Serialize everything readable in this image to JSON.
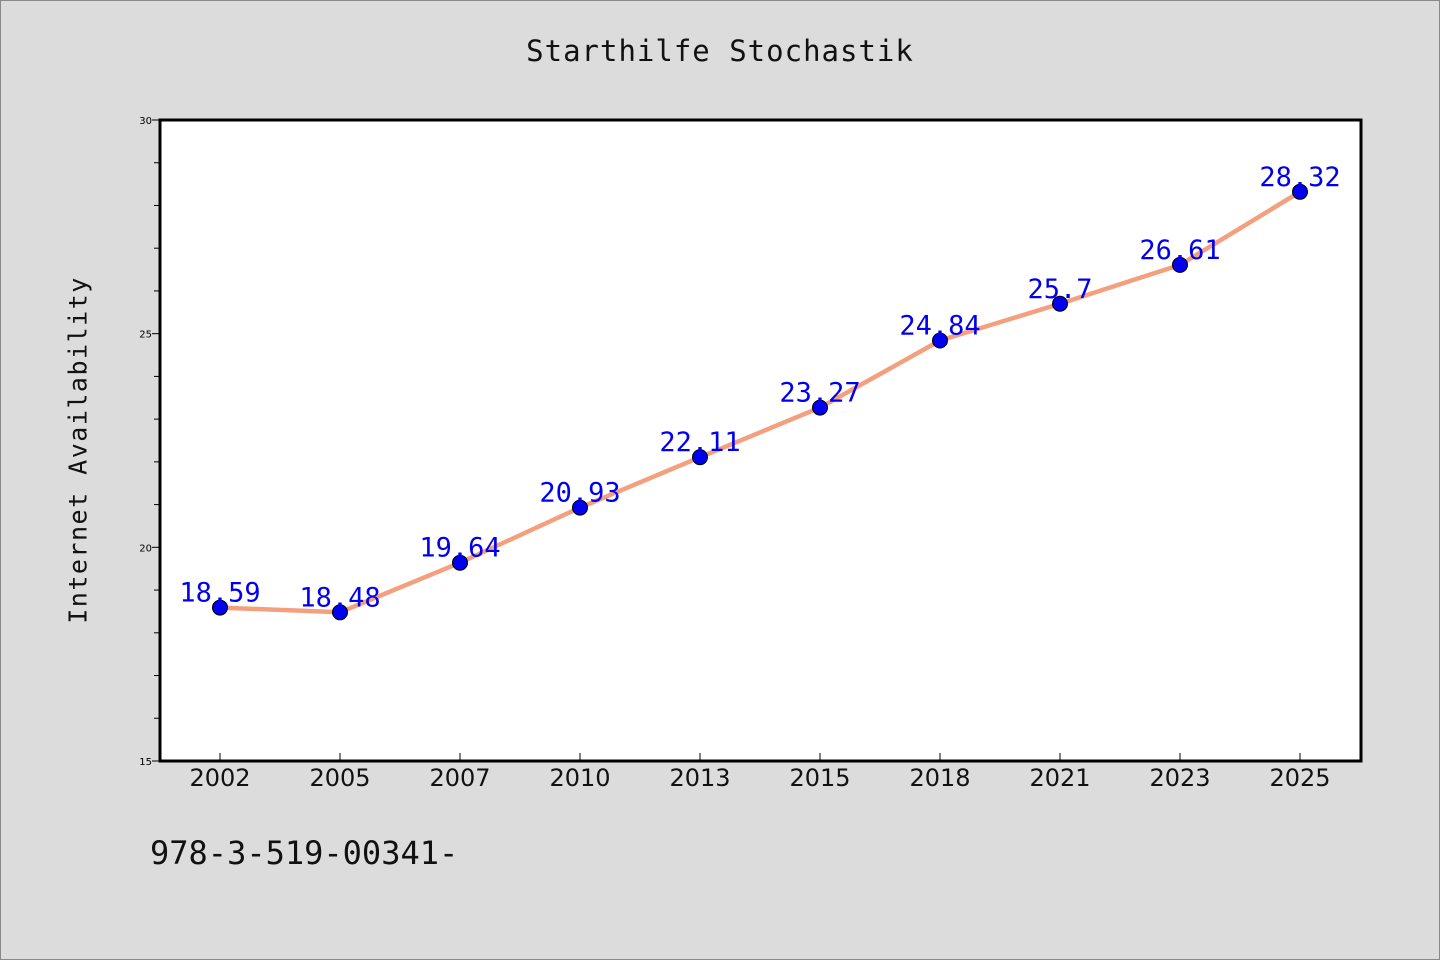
{
  "chart_data": {
    "type": "line",
    "title": "Starthilfe Stochastik",
    "xlabel": "",
    "ylabel": "Internet Availability",
    "categories": [
      "2002",
      "2005",
      "2007",
      "2010",
      "2013",
      "2015",
      "2018",
      "2021",
      "2023",
      "2025"
    ],
    "series": [
      {
        "values": [
          18.59,
          18.48,
          19.64,
          20.93,
          22.11,
          23.27,
          24.84,
          25.7,
          26.61,
          28.32
        ],
        "labels": [
          "18.59",
          "18.48",
          "19.64",
          "20.93",
          "22.11",
          "23.27",
          "24.84",
          "25.7",
          "26.61",
          "28.32"
        ],
        "line_color": "#f4a07e",
        "marker_color": "#0000ee",
        "label_color": "#0000ee"
      }
    ],
    "ylim": [
      15,
      30
    ],
    "yticks": [
      "15",
      "20",
      "25",
      "30"
    ],
    "grid": false,
    "legend": "none"
  },
  "footer": {
    "text": "978-3-519-00341-"
  }
}
